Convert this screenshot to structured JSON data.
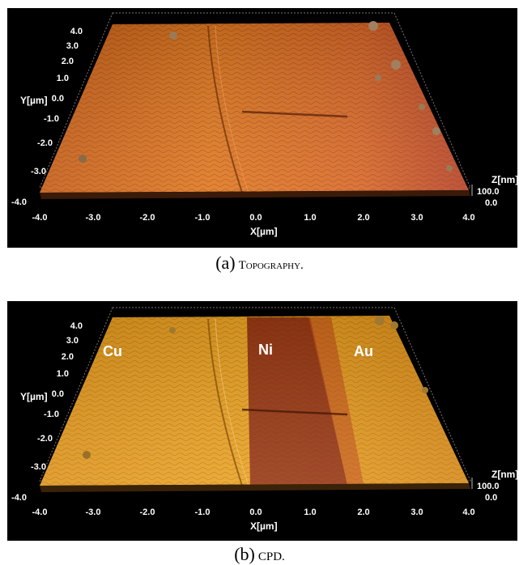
{
  "figures": [
    {
      "id": "a",
      "caption_label": "(a)",
      "caption_text": "Topography.",
      "y_ticks": [
        "4.0",
        "3.0",
        "2.0",
        "1.0",
        "0.0",
        "-1.0",
        "-2.0",
        "-3.0",
        "-4.0"
      ],
      "x_ticks": [
        "-4.0",
        "-3.0",
        "-2.0",
        "-1.0",
        "0.0",
        "1.0",
        "2.0",
        "3.0",
        "4.0"
      ],
      "y_axis_title": "Y[µm]",
      "x_axis_title": "X[µm]",
      "z_axis_title": "Z[nm]",
      "z_ticks": [
        "100.0",
        "0.0"
      ],
      "region_labels": []
    },
    {
      "id": "b",
      "caption_label": "(b)",
      "caption_text": "CPD.",
      "y_ticks": [
        "4.0",
        "3.0",
        "2.0",
        "1.0",
        "0.0",
        "-1.0",
        "-2.0",
        "-3.0",
        "-4.0"
      ],
      "x_ticks": [
        "-4.0",
        "-3.0",
        "-2.0",
        "-1.0",
        "0.0",
        "1.0",
        "2.0",
        "3.0",
        "4.0"
      ],
      "y_axis_title": "Y[µm]",
      "x_axis_title": "X[µm]",
      "z_axis_title": "Z[nm]",
      "z_ticks": [
        "100.0",
        "0.0"
      ],
      "region_labels": [
        "Cu",
        "Ni",
        "Au"
      ]
    }
  ],
  "colors": {
    "topography_surface": "#d9741f",
    "cpd_surface": "#e8a020",
    "ni_band": "#8e2a12",
    "background": "#000000"
  }
}
